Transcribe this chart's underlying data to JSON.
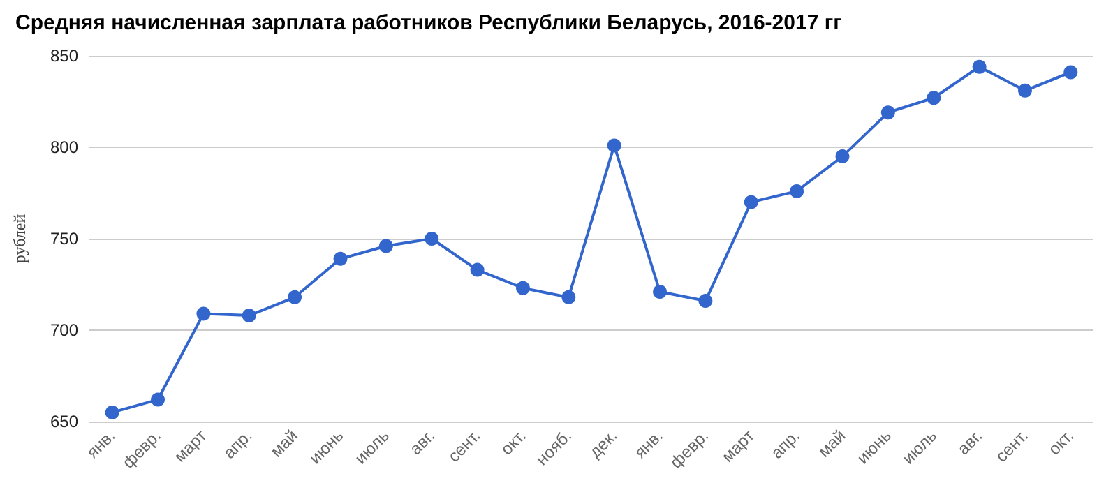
{
  "chart_data": {
    "type": "line",
    "title": "Средняя начисленная зарплата работников Республики Беларусь, 2016-2017 гг",
    "ylabel": "рублей",
    "categories": [
      "янв.",
      "февр.",
      "март",
      "апр.",
      "май",
      "июнь",
      "июль",
      "авг.",
      "сент.",
      "окт.",
      "нояб.",
      "дек.",
      "янв.",
      "февр.",
      "март",
      "апр.",
      "май",
      "июнь",
      "июль",
      "авг.",
      "сент.",
      "окт."
    ],
    "series": [
      {
        "color": "#3366cc",
        "values": [
          655,
          662,
          709,
          708,
          718,
          739,
          746,
          750,
          733,
          723,
          718,
          801,
          721,
          716,
          770,
          776,
          795,
          819,
          827,
          844,
          831,
          841
        ]
      }
    ],
    "ylim": [
      650,
      850
    ],
    "yticks": [
      650,
      700,
      750,
      800,
      850
    ],
    "grid": "y",
    "marker": "circle",
    "line_style": "solid"
  }
}
